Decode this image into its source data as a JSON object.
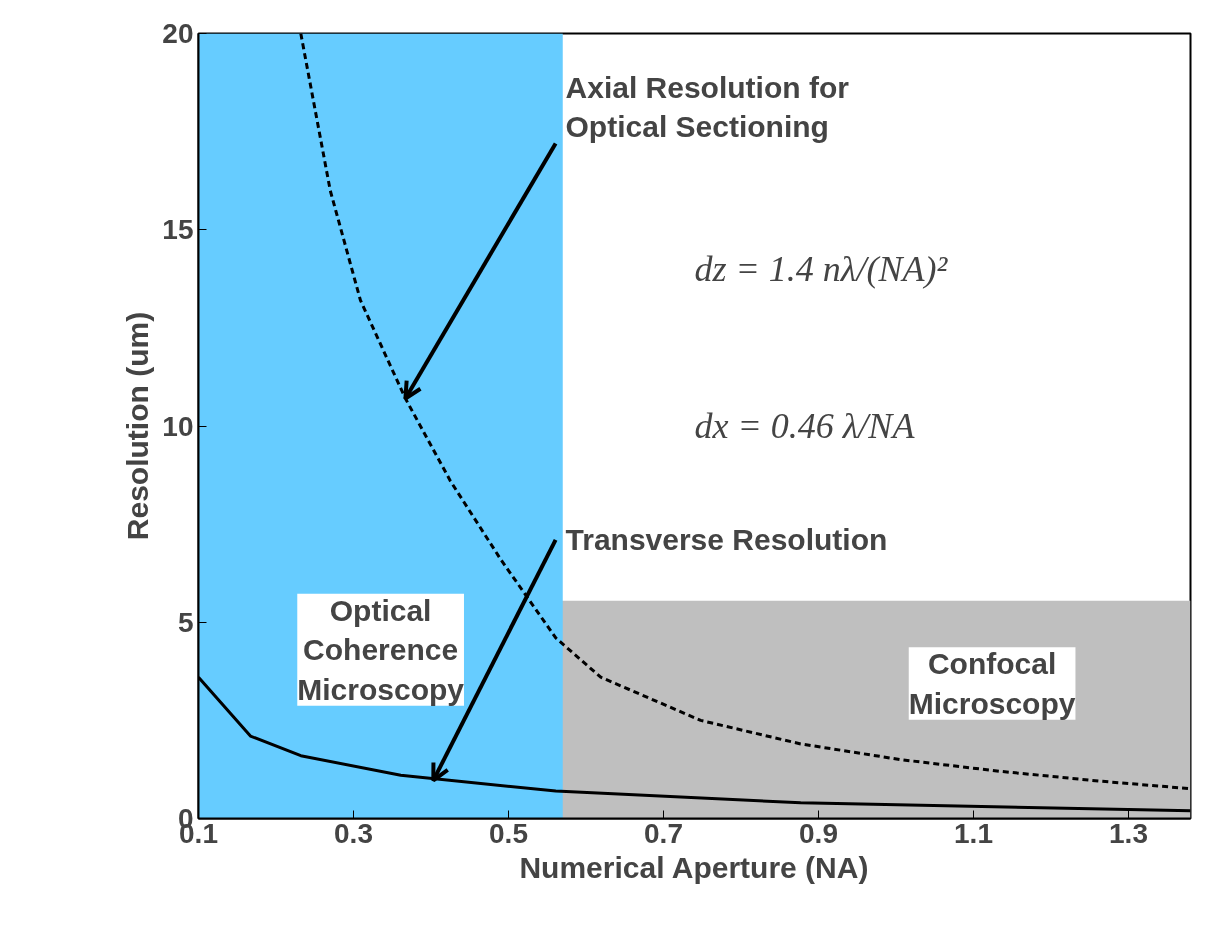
{
  "chart_data": {
    "type": "line",
    "xlabel": "Numerical Aperture (NA)",
    "ylabel": "Resolution (um)",
    "xlim": [
      0.1,
      1.38
    ],
    "ylim": [
      0,
      20
    ],
    "xticks": [
      0.1,
      0.3,
      0.5,
      0.7,
      0.9,
      1.1,
      1.3
    ],
    "yticks": [
      0,
      5,
      10,
      15,
      20
    ],
    "grid": false,
    "marker": "none",
    "series": [
      {
        "color": "#000000",
        "line_style": "dashed",
        "x": [
          0.232,
          0.27,
          0.309,
          0.367,
          0.425,
          0.49,
          0.561,
          0.619,
          0.748,
          0.877,
          1.006,
          1.135,
          1.264,
          1.38
        ],
        "values": [
          20,
          16.0,
          13.2,
          10.7,
          8.6,
          6.6,
          4.6,
          3.6,
          2.5,
          1.9,
          1.5,
          1.2,
          0.95,
          0.76
        ]
      },
      {
        "color": "#000000",
        "line_style": "solid",
        "x": [
          0.1,
          0.167,
          0.232,
          0.361,
          0.561,
          0.877,
          1.38
        ],
        "values": [
          3.6,
          2.1,
          1.6,
          1.1,
          0.7,
          0.4,
          0.2
        ]
      }
    ],
    "bands": [
      {
        "axis": "y",
        "from": 0,
        "to": 5.55,
        "label": "Confocal Microscopy",
        "color": "#bfbfbf"
      },
      {
        "axis": "x",
        "from": 0.1,
        "to": 0.57,
        "label": "Optical Coherence Microscopy",
        "color": "#66ccff"
      }
    ],
    "annotations": [
      {
        "text": "Axial Resolution for Optical Sectioning",
        "x": 0.367,
        "y": 10.7
      },
      {
        "text": "Transverse Resolution",
        "x": 0.403,
        "y": 0.97
      },
      "dz = 1.4 nλ/(NA)²",
      "dx = 0.46 λ/NA"
    ]
  }
}
